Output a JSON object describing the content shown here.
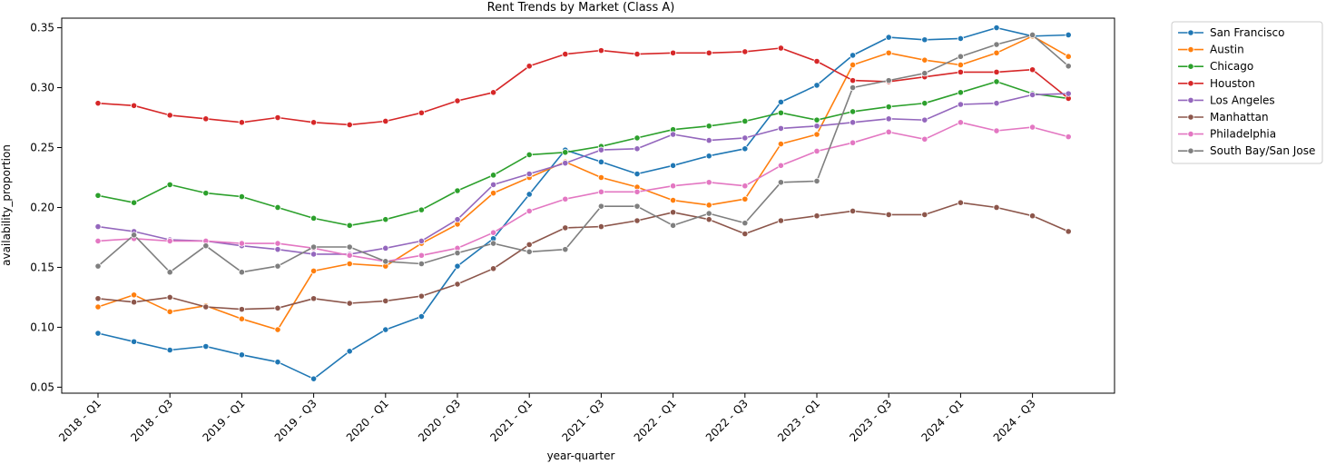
{
  "chart_data": {
    "type": "line",
    "title": "Rent Trends by Market (Class A)",
    "xlabel": "year-quarter",
    "ylabel": "availability_proportion",
    "ylim": [
      0.045,
      0.358
    ],
    "yticks": [
      0.05,
      0.1,
      0.15,
      0.2,
      0.25,
      0.3,
      0.35
    ],
    "ytick_labels": [
      "0.05",
      "0.10",
      "0.15",
      "0.20",
      "0.25",
      "0.30",
      "0.35"
    ],
    "grid": false,
    "legend": "outside-top-right",
    "x": [
      "2018 - Q1",
      "2018 - Q2",
      "2018 - Q3",
      "2018 - Q4",
      "2019 - Q1",
      "2019 - Q2",
      "2019 - Q3",
      "2019 - Q4",
      "2020 - Q1",
      "2020 - Q2",
      "2020 - Q3",
      "2020 - Q4",
      "2021 - Q1",
      "2021 - Q2",
      "2021 - Q3",
      "2021 - Q4",
      "2022 - Q1",
      "2022 - Q2",
      "2022 - Q3",
      "2022 - Q4",
      "2023 - Q1",
      "2023 - Q2",
      "2023 - Q3",
      "2023 - Q4",
      "2024 - Q1",
      "2024 - Q2",
      "2024 - Q3",
      "2024 - Q4"
    ],
    "xticks": [
      "2018 - Q1",
      "2018 - Q3",
      "2019 - Q1",
      "2019 - Q3",
      "2020 - Q1",
      "2020 - Q3",
      "2021 - Q1",
      "2021 - Q3",
      "2022 - Q1",
      "2022 - Q3",
      "2023 - Q1",
      "2023 - Q3",
      "2024 - Q1",
      "2024 - Q3"
    ],
    "series": [
      {
        "name": "San Francisco",
        "color": "#1f77b4",
        "values": [
          0.095,
          0.088,
          0.081,
          0.084,
          0.077,
          0.071,
          0.057,
          0.08,
          0.098,
          0.109,
          0.151,
          0.174,
          0.211,
          0.248,
          0.238,
          0.228,
          0.235,
          0.243,
          0.249,
          0.288,
          0.302,
          0.327,
          0.342,
          0.34,
          0.341,
          0.35,
          0.343,
          0.344
        ]
      },
      {
        "name": "Austin",
        "color": "#ff7f0e",
        "values": [
          0.117,
          0.127,
          0.113,
          0.118,
          0.107,
          0.098,
          0.147,
          0.153,
          0.151,
          0.17,
          0.186,
          0.212,
          0.225,
          0.238,
          0.225,
          0.217,
          0.206,
          0.202,
          0.207,
          0.253,
          0.261,
          0.319,
          0.329,
          0.323,
          0.319,
          0.329,
          0.343,
          0.326
        ]
      },
      {
        "name": "Chicago",
        "color": "#2ca02c",
        "values": [
          0.21,
          0.204,
          0.219,
          0.212,
          0.209,
          0.2,
          0.191,
          0.185,
          0.19,
          0.198,
          0.214,
          0.227,
          0.244,
          0.246,
          0.251,
          0.258,
          0.265,
          0.268,
          0.272,
          0.279,
          0.273,
          0.28,
          0.284,
          0.287,
          0.296,
          0.305,
          0.295,
          0.291
        ]
      },
      {
        "name": "Houston",
        "color": "#d62728",
        "values": [
          0.287,
          0.285,
          0.277,
          0.274,
          0.271,
          0.275,
          0.271,
          0.269,
          0.272,
          0.279,
          0.289,
          0.296,
          0.318,
          0.328,
          0.331,
          0.328,
          0.329,
          0.329,
          0.33,
          0.333,
          0.322,
          0.306,
          0.305,
          0.309,
          0.313,
          0.313,
          0.315,
          0.291
        ]
      },
      {
        "name": "Los Angeles",
        "color": "#9467bd",
        "values": [
          0.184,
          0.18,
          0.173,
          0.172,
          0.168,
          0.165,
          0.161,
          0.161,
          0.166,
          0.172,
          0.19,
          0.219,
          0.228,
          0.237,
          0.248,
          0.249,
          0.261,
          0.256,
          0.258,
          0.266,
          0.268,
          0.271,
          0.274,
          0.273,
          0.286,
          0.287,
          0.294,
          0.295
        ]
      },
      {
        "name": "Manhattan",
        "color": "#8c564b",
        "values": [
          0.124,
          0.121,
          0.125,
          0.117,
          0.115,
          0.116,
          0.124,
          0.12,
          0.122,
          0.126,
          0.136,
          0.149,
          0.169,
          0.183,
          0.184,
          0.189,
          0.196,
          0.19,
          0.178,
          0.189,
          0.193,
          0.197,
          0.194,
          0.194,
          0.204,
          0.2,
          0.193,
          0.18
        ]
      },
      {
        "name": "Philadelphia",
        "color": "#e377c2",
        "values": [
          0.172,
          0.174,
          0.172,
          0.172,
          0.17,
          0.17,
          0.166,
          0.16,
          0.155,
          0.16,
          0.166,
          0.179,
          0.197,
          0.207,
          0.213,
          0.213,
          0.218,
          0.221,
          0.218,
          0.235,
          0.247,
          0.254,
          0.263,
          0.257,
          0.271,
          0.264,
          0.267,
          0.259
        ]
      },
      {
        "name": "South Bay/San Jose",
        "color": "#7f7f7f",
        "values": [
          0.151,
          0.177,
          0.146,
          0.168,
          0.146,
          0.151,
          0.167,
          0.167,
          0.155,
          0.153,
          0.162,
          0.17,
          0.163,
          0.165,
          0.201,
          0.201,
          0.185,
          0.195,
          0.187,
          0.221,
          0.222,
          0.3,
          0.306,
          0.312,
          0.326,
          0.336,
          0.344,
          0.318
        ]
      }
    ]
  }
}
